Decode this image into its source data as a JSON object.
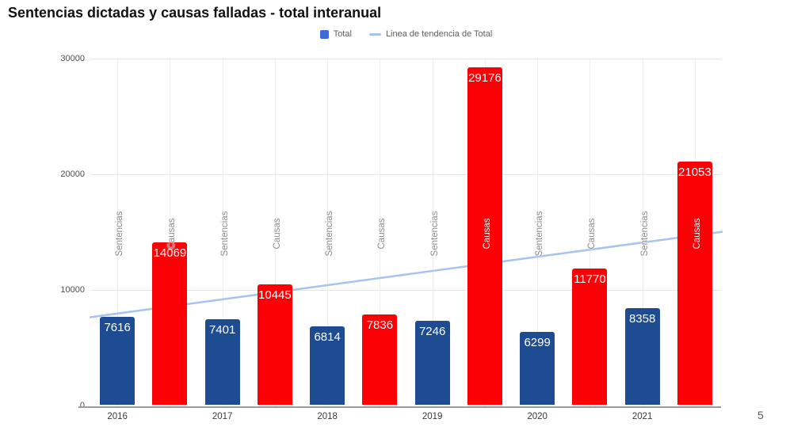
{
  "title": "Sentencias dictadas y causas falladas - total interanual",
  "legend": {
    "series_label": "Total",
    "trend_label": "Linea de tendencia de Total"
  },
  "page": {
    "number": "5"
  },
  "colors": {
    "sentencias_bar": "#1e4c92",
    "causas_bar": "#fb0105",
    "legend_square": "#3d6ad6",
    "trend_line": "#a7c4ef",
    "hgrid": "#e6e6e6",
    "vgrid": "#eeeeee",
    "axis_line": "#9a9a9a",
    "category_label_gray": "#8b8b8b",
    "category_label_on_bar": "#ffffff",
    "value_label": "#ffffff"
  },
  "chart_data": {
    "type": "bar",
    "title": "Sentencias dictadas y causas falladas - total interanual",
    "years": [
      "2016",
      "2017",
      "2018",
      "2019",
      "2020",
      "2021"
    ],
    "categories_per_year": [
      "Sentencias",
      "Causas"
    ],
    "series": [
      {
        "name": "Sentencias",
        "values": [
          7616,
          7401,
          6814,
          7246,
          6299,
          8358
        ]
      },
      {
        "name": "Causas",
        "values": [
          14069,
          10445,
          7836,
          29176,
          11770,
          21053
        ]
      }
    ],
    "y_ticks": [
      0,
      10000,
      20000,
      30000
    ],
    "ylim": [
      0,
      30000
    ],
    "grid": true,
    "legend_position": "top",
    "legend": [
      "Total",
      "Linea de tendencia de Total"
    ],
    "trend": {
      "label": "Linea de tendencia de Total",
      "start": 7700,
      "end": 15100
    }
  }
}
